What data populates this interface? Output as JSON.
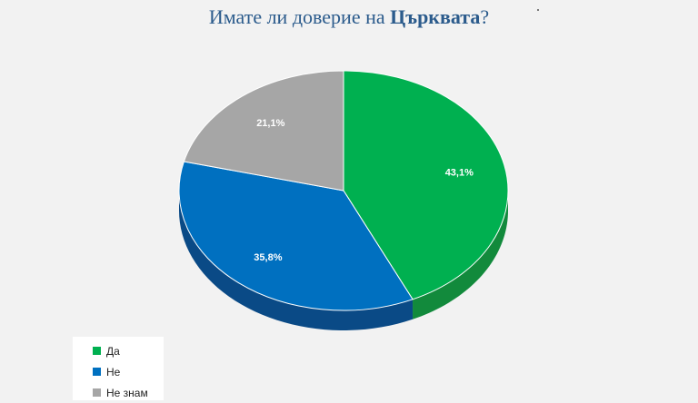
{
  "title": {
    "prefix": "Имате ли доверие на ",
    "bold": "Църквата",
    "suffix": "?"
  },
  "chart_data": {
    "type": "pie",
    "title": "Имате ли доверие на Църквата?",
    "slices": [
      {
        "label": "Да",
        "value": 43.1,
        "display": "43,1%",
        "color": "#00b050",
        "side": "#128a3c"
      },
      {
        "label": "Не",
        "value": 35.8,
        "display": "35,8%",
        "color": "#0070c0",
        "side": "#0a4a86"
      },
      {
        "label": "Не знам",
        "value": 21.1,
        "display": "21,1%",
        "color": "#a6a6a6",
        "side": "#7a7a7a"
      }
    ],
    "legend_position": "bottom-left",
    "data_labels": true
  }
}
